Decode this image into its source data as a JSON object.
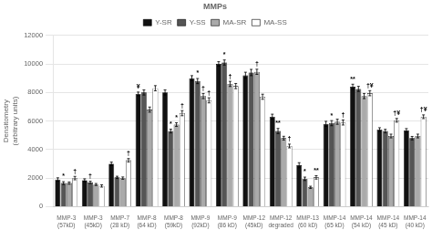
{
  "chart_data": {
    "type": "bar",
    "title": "MMPs",
    "ylabel": "Densitometry\n(arbitrary units)",
    "ylim": [
      0,
      12000
    ],
    "yticks": [
      0,
      2000,
      4000,
      6000,
      8000,
      10000,
      12000
    ],
    "grid": true,
    "legend": "top",
    "categories": [
      "MMP-3\n(57kD)",
      "MMP-3\n(45kD)",
      "MMP-7\n(28 kD)",
      "MMP-8\n(64 kD)",
      "MMP-8\n(59kD)",
      "MMP-9\n(92kD)",
      "MMP-9\n(86 kD)",
      "MMP-12\n(45kD)",
      "MMP-12\ndegraded",
      "MMP-13\n(60 kD)",
      "MMP-14\n(65 kD)",
      "MMP-14\n(54 kD)",
      "MMP-14\n(45 kD)",
      "MMP-14\n(40 kD)"
    ],
    "series": [
      {
        "name": "Y-SR",
        "color": "#111111",
        "values": [
          1900,
          1850,
          3000,
          7900,
          8000,
          9000,
          10000,
          9200,
          6300,
          2900,
          5800,
          8400,
          5400,
          5350
        ],
        "errors": [
          120,
          100,
          120,
          130,
          180,
          180,
          160,
          220,
          180,
          180,
          180,
          180,
          130,
          120
        ]
      },
      {
        "name": "Y-SS",
        "color": "#555555",
        "values": [
          1650,
          1700,
          2050,
          8000,
          5300,
          8800,
          10100,
          9400,
          5300,
          1950,
          5850,
          8250,
          5300,
          4800
        ],
        "errors": [
          100,
          80,
          80,
          180,
          130,
          180,
          180,
          220,
          180,
          120,
          180,
          180,
          120,
          120
        ]
      },
      {
        "name": "MA-SR",
        "color": "#aaaaaa",
        "values": [
          1650,
          1550,
          2000,
          6800,
          5750,
          7750,
          8600,
          9450,
          4800,
          1350,
          5950,
          7750,
          4950,
          4950
        ],
        "errors": [
          80,
          70,
          80,
          180,
          130,
          180,
          180,
          180,
          130,
          80,
          180,
          180,
          130,
          130
        ]
      },
      {
        "name": "MA-SS",
        "color": "#ffffff",
        "values": [
          2000,
          1450,
          3250,
          8300,
          6550,
          7450,
          8450,
          7700,
          4250,
          2050,
          5900,
          7950,
          6050,
          6300
        ],
        "errors": [
          120,
          80,
          120,
          180,
          180,
          180,
          180,
          180,
          130,
          120,
          180,
          180,
          130,
          130
        ]
      }
    ],
    "annotations": [
      {
        "category": "MMP-3\n(57kD)",
        "series": "Y-SS",
        "text": "*"
      },
      {
        "category": "MMP-3\n(57kD)",
        "series": "MA-SS",
        "text": "†"
      },
      {
        "category": "MMP-3\n(45kD)",
        "series": "Y-SS",
        "text": "†"
      },
      {
        "category": "MMP-7\n(28 kD)",
        "series": "MA-SS",
        "text": "†"
      },
      {
        "category": "MMP-8\n(64 kD)",
        "series": "Y-SR",
        "text": "¥"
      },
      {
        "category": "MMP-8\n(59kD)",
        "series": "Y-SS",
        "text": "*"
      },
      {
        "category": "MMP-8\n(59kD)",
        "series": "MA-SR",
        "text": "*"
      },
      {
        "category": "MMP-8\n(59kD)",
        "series": "MA-SS",
        "text": "†"
      },
      {
        "category": "MMP-9\n(92kD)",
        "series": "Y-SS",
        "text": "*"
      },
      {
        "category": "MMP-9\n(92kD)",
        "series": "MA-SR",
        "text": "†"
      },
      {
        "category": "MMP-9\n(92kD)",
        "series": "MA-SS",
        "text": "†"
      },
      {
        "category": "MMP-9\n(86 kD)",
        "series": "Y-SS",
        "text": "*"
      },
      {
        "category": "MMP-9\n(86 kD)",
        "series": "MA-SR",
        "text": "†"
      },
      {
        "category": "MMP-12\n(45kD)",
        "series": "MA-SR",
        "text": "†"
      },
      {
        "category": "MMP-12\ndegraded",
        "series": "Y-SS",
        "text": "**"
      },
      {
        "category": "MMP-12\ndegraded",
        "series": "MA-SS",
        "text": "†"
      },
      {
        "category": "MMP-13\n(60 kD)",
        "series": "Y-SS",
        "text": "*"
      },
      {
        "category": "MMP-13\n(60 kD)",
        "series": "MA-SS",
        "text": "**"
      },
      {
        "category": "MMP-14\n(65 kD)",
        "series": "Y-SS",
        "text": "*"
      },
      {
        "category": "MMP-14\n(65 kD)",
        "series": "MA-SS",
        "text": "†"
      },
      {
        "category": "MMP-14\n(54 kD)",
        "series": "Y-SR",
        "text": "**"
      },
      {
        "category": "MMP-14\n(54 kD)",
        "series": "MA-SS",
        "text": "†¥"
      },
      {
        "category": "MMP-14\n(45 kD)",
        "series": "MA-SS",
        "text": "†¥"
      },
      {
        "category": "MMP-14\n(40 kD)",
        "series": "MA-SS",
        "text": "†¥"
      }
    ]
  }
}
